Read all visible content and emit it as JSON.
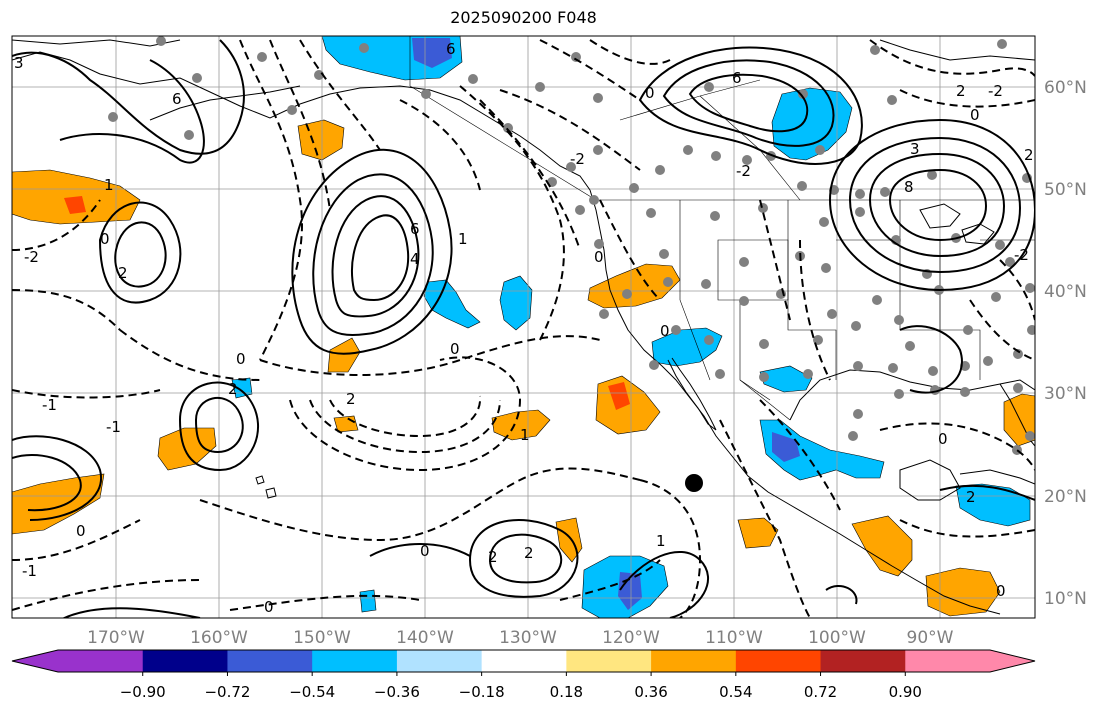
{
  "title": "2025090200 F048",
  "map": {
    "lat_labels": [
      "60°N",
      "50°N",
      "40°N",
      "30°N",
      "20°N",
      "10°N"
    ],
    "lon_labels": [
      "170°W",
      "160°W",
      "150°W",
      "140°W",
      "130°W",
      "120°W",
      "110°W",
      "100°W",
      "90°W"
    ],
    "contour_labels": [
      "3",
      "6",
      "6",
      "6",
      "0",
      "0",
      "2",
      "1",
      "-2",
      "-1",
      "0",
      "-2",
      "-2",
      "6",
      "8",
      "3",
      "2",
      "4",
      "2",
      "2",
      "0",
      "0",
      "2",
      "1",
      "-1",
      "-2",
      "0",
      "0",
      "0",
      "0",
      "2",
      "2",
      "-2",
      "-1",
      "1",
      "0",
      "0",
      "0",
      "2",
      "1"
    ]
  },
  "colorbar": {
    "ticks": [
      "−0.90",
      "−0.72",
      "−0.54",
      "−0.36",
      "−0.18",
      "0.18",
      "0.36",
      "0.54",
      "0.72",
      "0.90"
    ],
    "colors": [
      "#9932cc",
      "#00008b",
      "#3b5bd6",
      "#00bfff",
      "#b0e2ff",
      "#ffffff",
      "#ffe680",
      "#ffa500",
      "#ff4500",
      "#b22222",
      "#ff88aa",
      "#ff88aa"
    ]
  },
  "colors": {
    "land_outline": "#000000",
    "grid": "#9a9a9a",
    "station_dot": "#808080",
    "orange": "#ffa500",
    "red": "#ff4500",
    "sky": "#00bfff",
    "blue": "#3b5bd6"
  }
}
